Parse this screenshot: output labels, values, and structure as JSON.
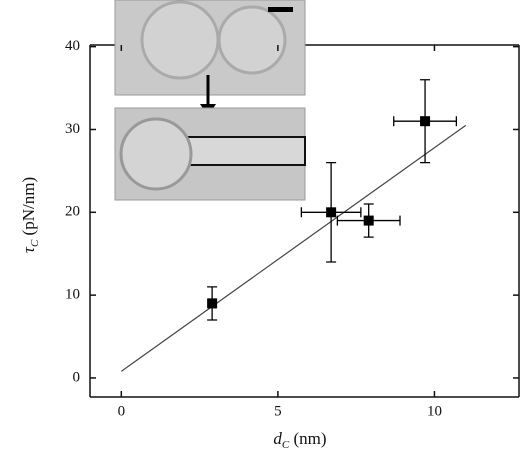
{
  "chart_data": {
    "type": "scatter",
    "x": [
      2.9,
      6.7,
      7.9,
      9.7
    ],
    "values": [
      9,
      20,
      19,
      31
    ],
    "x_errors": [
      0.1,
      0.95,
      1.0,
      1.0
    ],
    "y_errors": [
      2,
      6,
      2,
      5
    ],
    "color": "#000000",
    "fit": {
      "x": [
        0,
        11
      ],
      "y": [
        0.8,
        30.5
      ],
      "color": "#444444"
    },
    "xlim": [
      -1,
      12.7
    ],
    "ylim": [
      -2.3,
      40.2
    ],
    "xticks": [
      0,
      5,
      10
    ],
    "yticks": [
      0,
      10,
      20,
      30,
      40
    ],
    "xlabel": {
      "symbol": "d",
      "subscript": "C",
      "unit": " (nm)"
    },
    "ylabel": {
      "symbol": "τ",
      "subscript": "C",
      "unit": " (pN/nm)"
    }
  }
}
